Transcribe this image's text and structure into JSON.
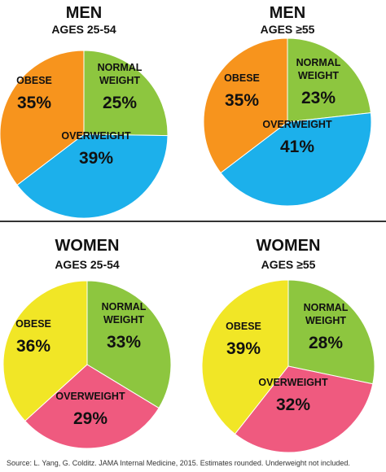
{
  "colors": {
    "normal_weight": "#8dc63f",
    "overweight_men": "#1cb0eb",
    "overweight_women": "#ef5a7f",
    "obese_men": "#f7941d",
    "obese_women": "#f1e626",
    "divider": "#333333"
  },
  "chart_data": [
    {
      "type": "pie",
      "title": "MEN",
      "subtitle": "AGES 25-54",
      "slices": [
        {
          "label": "NORMAL WEIGHT",
          "label_lines": [
            "NORMAL",
            "WEIGHT"
          ],
          "value": 25,
          "display": "25%",
          "color": "#8dc63f"
        },
        {
          "label": "OVERWEIGHT",
          "label_lines": [
            "OVERWEIGHT"
          ],
          "value": 39,
          "display": "39%",
          "color": "#1cb0eb"
        },
        {
          "label": "OBESE",
          "label_lines": [
            "OBESE"
          ],
          "value": 35,
          "display": "35%",
          "color": "#f7941d"
        }
      ]
    },
    {
      "type": "pie",
      "title": "MEN",
      "subtitle": "AGES ≥55",
      "slices": [
        {
          "label": "NORMAL WEIGHT",
          "label_lines": [
            "NORMAL",
            "WEIGHT"
          ],
          "value": 23,
          "display": "23%",
          "color": "#8dc63f"
        },
        {
          "label": "OVERWEIGHT",
          "label_lines": [
            "OVERWEIGHT"
          ],
          "value": 41,
          "display": "41%",
          "color": "#1cb0eb"
        },
        {
          "label": "OBESE",
          "label_lines": [
            "OBESE"
          ],
          "value": 35,
          "display": "35%",
          "color": "#f7941d"
        }
      ]
    },
    {
      "type": "pie",
      "title": "WOMEN",
      "subtitle": "AGES 25-54",
      "slices": [
        {
          "label": "NORMAL WEIGHT",
          "label_lines": [
            "NORMAL",
            "WEIGHT"
          ],
          "value": 33,
          "display": "33%",
          "color": "#8dc63f"
        },
        {
          "label": "OVERWEIGHT",
          "label_lines": [
            "OVERWEIGHT"
          ],
          "value": 29,
          "display": "29%",
          "color": "#ef5a7f"
        },
        {
          "label": "OBESE",
          "label_lines": [
            "OBESE"
          ],
          "value": 36,
          "display": "36%",
          "color": "#f1e626"
        }
      ]
    },
    {
      "type": "pie",
      "title": "WOMEN",
      "subtitle": "AGES ≥55",
      "slices": [
        {
          "label": "NORMAL WEIGHT",
          "label_lines": [
            "NORMAL",
            "WEIGHT"
          ],
          "value": 28,
          "display": "28%",
          "color": "#8dc63f"
        },
        {
          "label": "OVERWEIGHT",
          "label_lines": [
            "OVERWEIGHT"
          ],
          "value": 32,
          "display": "32%",
          "color": "#ef5a7f"
        },
        {
          "label": "OBESE",
          "label_lines": [
            "OBESE"
          ],
          "value": 39,
          "display": "39%",
          "color": "#f1e626"
        }
      ]
    }
  ],
  "source_note": "Source: L. Yang, G. Colditz. JAMA Internal Medicine, 2015. Estimates rounded. Underweight not included."
}
